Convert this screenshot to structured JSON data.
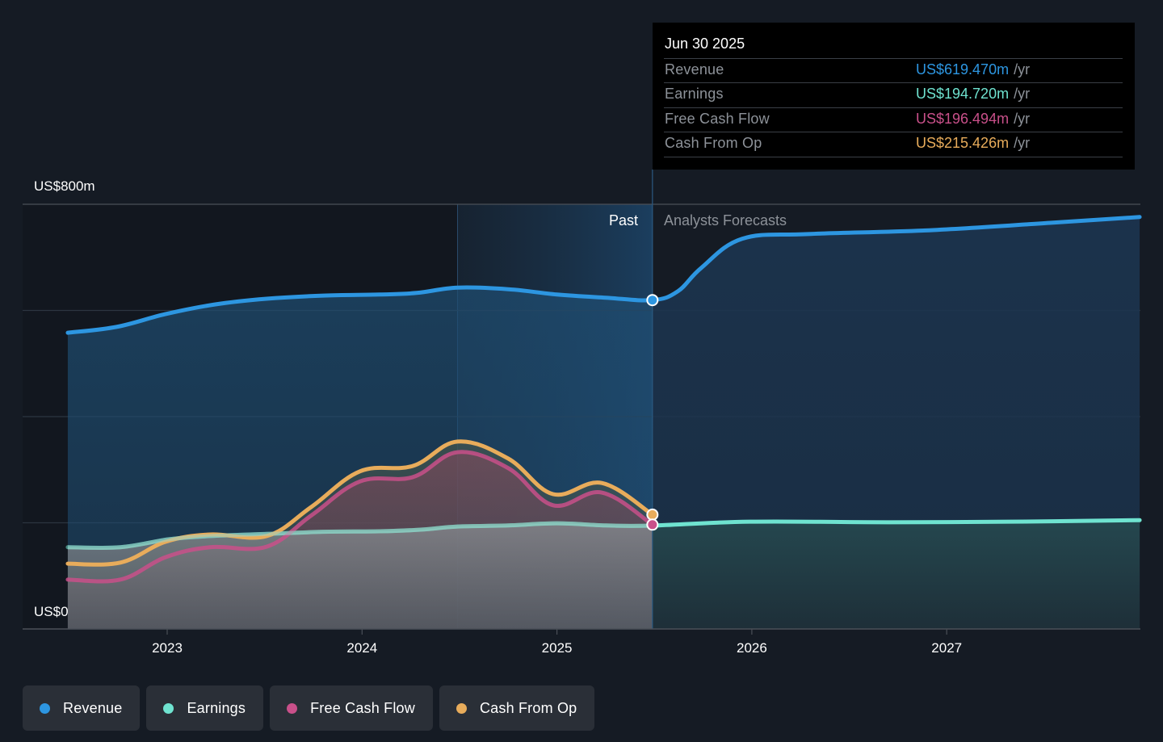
{
  "chart_data": {
    "type": "area",
    "title": "",
    "xlabel": "",
    "ylabel": "",
    "y_axis_labels": [
      "US$800m",
      "US$0"
    ],
    "ylim": [
      0,
      800
    ],
    "y_unit": "US$m",
    "xlim": [
      2022.51,
      2027.99
    ],
    "x_ticks": [
      "2023",
      "2024",
      "2025",
      "2026",
      "2027"
    ],
    "x_tick_values": [
      2023,
      2024,
      2025,
      2026,
      2027
    ],
    "gridlines": [
      0,
      200,
      400,
      600,
      800
    ],
    "past_forecast_split": 2025.49,
    "highlight_band_start": 2024.49,
    "section_labels": {
      "past": "Past",
      "forecast": "Analysts Forecasts"
    },
    "legend_position": "bottom-left",
    "series": [
      {
        "name": "Revenue",
        "color": "#2d96e1",
        "points": [
          [
            2022.49,
            558
          ],
          [
            2022.74,
            569
          ],
          [
            2022.99,
            593
          ],
          [
            2023.24,
            611
          ],
          [
            2023.51,
            622
          ],
          [
            2023.8,
            628
          ],
          [
            2024.09,
            630
          ],
          [
            2024.28,
            633
          ],
          [
            2024.49,
            643
          ],
          [
            2024.75,
            640
          ],
          [
            2025.0,
            630
          ],
          [
            2025.25,
            624
          ],
          [
            2025.49,
            619.47
          ],
          [
            2025.62,
            636
          ],
          [
            2025.74,
            680
          ],
          [
            2025.95,
            735
          ],
          [
            2026.29,
            744
          ],
          [
            2026.91,
            751
          ],
          [
            2027.53,
            765
          ],
          [
            2027.99,
            776
          ]
        ]
      },
      {
        "name": "Earnings",
        "color": "#6fe3d0",
        "points": [
          [
            2022.49,
            154
          ],
          [
            2022.76,
            154
          ],
          [
            2023.01,
            169
          ],
          [
            2023.22,
            175
          ],
          [
            2023.51,
            179
          ],
          [
            2023.8,
            183
          ],
          [
            2024.09,
            184
          ],
          [
            2024.3,
            187
          ],
          [
            2024.49,
            193
          ],
          [
            2024.75,
            195
          ],
          [
            2025.0,
            199
          ],
          [
            2025.25,
            195
          ],
          [
            2025.49,
            194.72
          ],
          [
            2025.99,
            202
          ],
          [
            2026.7,
            201
          ],
          [
            2027.32,
            202
          ],
          [
            2027.99,
            205
          ]
        ]
      },
      {
        "name": "Free Cash Flow",
        "color": "#c9508a",
        "points": [
          [
            2022.49,
            93
          ],
          [
            2022.76,
            93
          ],
          [
            2022.99,
            135
          ],
          [
            2023.22,
            154
          ],
          [
            2023.51,
            155
          ],
          [
            2023.74,
            214
          ],
          [
            2023.99,
            278
          ],
          [
            2024.26,
            286
          ],
          [
            2024.49,
            333
          ],
          [
            2024.75,
            303
          ],
          [
            2024.98,
            233
          ],
          [
            2025.23,
            257
          ],
          [
            2025.49,
            196.494
          ]
        ]
      },
      {
        "name": "Cash From Op",
        "color": "#e8ac5b",
        "points": [
          [
            2022.49,
            123
          ],
          [
            2022.76,
            125
          ],
          [
            2022.99,
            164
          ],
          [
            2023.22,
            178
          ],
          [
            2023.51,
            175
          ],
          [
            2023.74,
            230
          ],
          [
            2023.99,
            297
          ],
          [
            2024.26,
            307
          ],
          [
            2024.49,
            353
          ],
          [
            2024.75,
            321
          ],
          [
            2024.98,
            254
          ],
          [
            2025.23,
            275
          ],
          [
            2025.49,
            215.426
          ]
        ]
      }
    ]
  },
  "axis": {
    "y_top_label": "US$800m",
    "y_bottom_label": "US$0"
  },
  "tooltip": {
    "date": "Jun 30 2025",
    "rows": [
      {
        "label": "Revenue",
        "value": "US$619.470m",
        "unit": "/yr",
        "color": "#2d96e1"
      },
      {
        "label": "Earnings",
        "value": "US$194.720m",
        "unit": "/yr",
        "color": "#6fe3d0"
      },
      {
        "label": "Free Cash Flow",
        "value": "US$196.494m",
        "unit": "/yr",
        "color": "#c9508a"
      },
      {
        "label": "Cash From Op",
        "value": "US$215.426m",
        "unit": "/yr",
        "color": "#e8ac5b"
      }
    ]
  },
  "sections": {
    "past": "Past",
    "forecast": "Analysts Forecasts"
  },
  "legend": [
    {
      "label": "Revenue",
      "color": "#2d96e1"
    },
    {
      "label": "Earnings",
      "color": "#6fe3d0"
    },
    {
      "label": "Free Cash Flow",
      "color": "#c9508a"
    },
    {
      "label": "Cash From Op",
      "color": "#e8ac5b"
    }
  ]
}
